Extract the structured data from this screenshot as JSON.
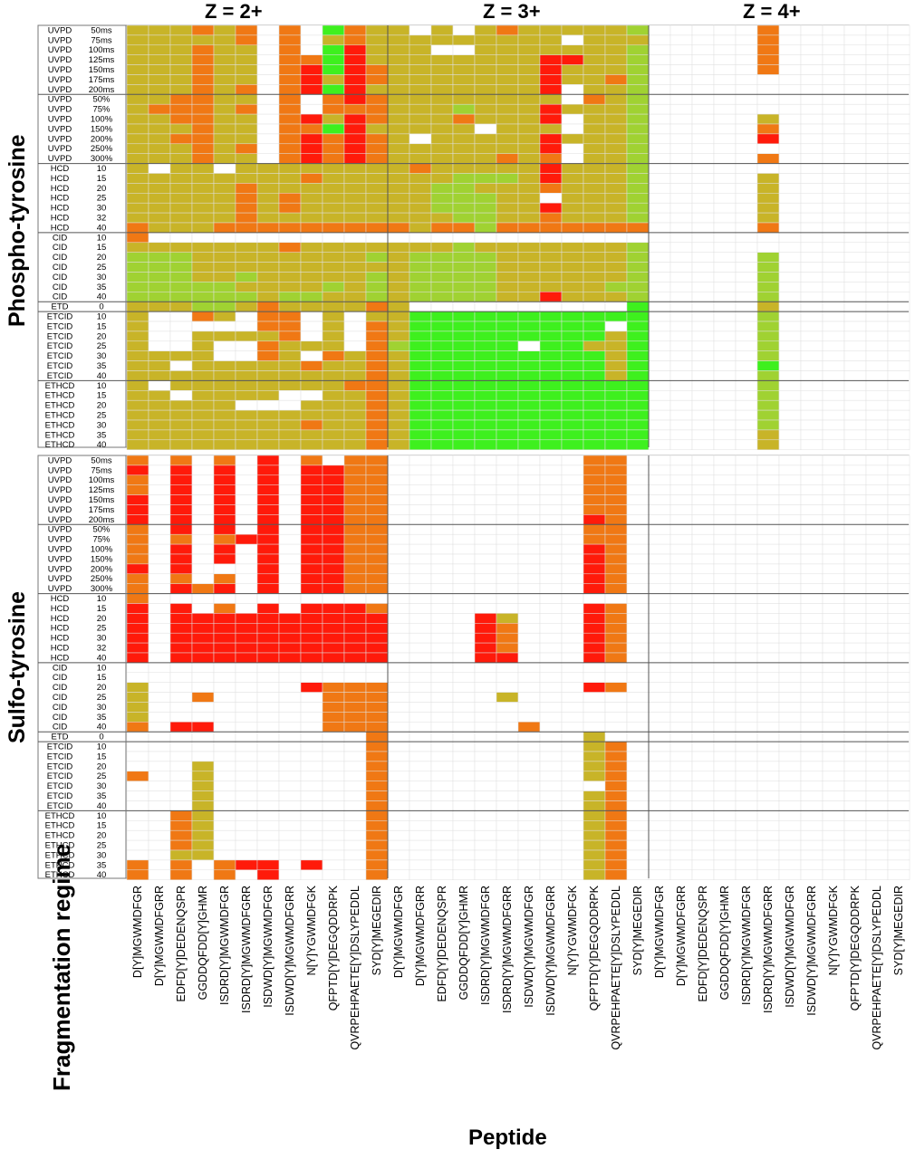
{
  "chart_data": {
    "type": "heatmap",
    "charge_states": [
      "Z = 2+",
      "Z = 3+",
      "Z = 4+"
    ],
    "peptides": [
      "D[Y]MGWMDFGR",
      "D[Y]MGWMDFGRR",
      "EDFD[Y]DEDENQSPR",
      "GGDDQFDD[Y]GHMR",
      "ISDRD[Y]MGWMDFGR",
      "ISDRD[Y]MGWMDFGRR",
      "ISDWD[Y]MGWMDFGR",
      "ISDWD[Y]MGWMDFGRR",
      "N[Y]YGWMDFGK",
      "QFPTD[Y]DEGQDDRPK",
      "QVRPEHPAETE[Y]DSLYPEDDL",
      "SYD[Y]MEGEDIR"
    ],
    "panels": [
      "Phospho-tyrosine",
      "Sulfo-tyrosine"
    ],
    "groups": [
      {
        "method": "UVPD",
        "levels": [
          "50ms",
          "75ms",
          "100ms",
          "125ms",
          "150ms",
          "175ms",
          "200ms"
        ]
      },
      {
        "method": "UVPD",
        "levels": [
          "50%",
          "75%",
          "100%",
          "150%",
          "200%",
          "250%",
          "300%"
        ]
      },
      {
        "method": "HCD",
        "levels": [
          "10",
          "15",
          "20",
          "25",
          "30",
          "32",
          "40"
        ]
      },
      {
        "method": "CID",
        "levels": [
          "10",
          "15",
          "20",
          "25",
          "30",
          "35",
          "40"
        ]
      },
      {
        "method": "ETD",
        "levels": [
          "0"
        ]
      },
      {
        "method": "ETCID",
        "levels": [
          "10",
          "15",
          "20",
          "25",
          "30",
          "35",
          "40"
        ]
      },
      {
        "method": "ETHCD",
        "levels": [
          "10",
          "15",
          "20",
          "25",
          "30",
          "35",
          "40"
        ]
      }
    ],
    "xlabel": "Peptide",
    "ylabel": "Fragmentation regime",
    "color_scale": [
      "#ff1a0a",
      "#f07814",
      "#c8b428",
      "#a0d232",
      "#3ef01e"
    ],
    "color_key": {
      "0": "#ffffff",
      "1": "#ff1a0a",
      "2": "#f07814",
      "3": "#c8b428",
      "4": "#a0d232",
      "5": "#3ef01e"
    },
    "grid": "on",
    "matrices": {
      "phospho": {
        "Z = 2+": [
          "333232020523",
          "333332020323",
          "333233020513",
          "333233022513",
          "333233021512",
          "333233021312",
          "333232021513",
          "332233020212",
          "322232020222",
          "332233021312",
          "333233022513",
          "332233021212",
          "333232021212",
          "333233021212",
          "303303333333",
          "333333332333",
          "333332333333",
          "333332323333",
          "333332323333",
          "333332333333",
          "233322222222",
          "200000000000",
          "333333323333",
          "444333333334",
          "444333333333",
          "444334333334",
          "444443333434",
          "444444344334",
          "333443233332",
          "300230220303",
          "300000220302",
          "300333320302",
          "300300233302",
          "333300230232",
          "330333332332",
          "333333333332",
          "303333333322",
          "330333300332",
          "333330003332",
          "333333333332",
          "333333332332",
          "333333333332",
          "333333333332"
        ],
        "Z = 3+": [
          "303032333334",
          "333333330333",
          "330033333334",
          "333333311334",
          "333333313334",
          "333333313324",
          "333333310334",
          "333333330234",
          "333433313334",
          "333233310334",
          "333303330334",
          "303333313334",
          "333333310334",
          "333332320334",
          "323333313334",
          "333444313334",
          "334433323334",
          "334443303334",
          "334443313334",
          "333443323334",
          "232242222222",
          "000000000000",
          "333433333334",
          "344443333334",
          "344443333334",
          "344443333334",
          "344443333344",
          "344443313334",
          "300000000005",
          "355555555555",
          "355555555505",
          "355555555535",
          "455555055335",
          "355555555535",
          "355555555535",
          "355555555535",
          "355555555555",
          "355555555555",
          "355555555555",
          "355555555555",
          "355555555555",
          "355555555555",
          "355555555555"
        ],
        "Z = 4+": [
          "000002000000",
          "000002000000",
          "000002000000",
          "000002000000",
          "000002000000",
          "000000000000",
          "000000000000",
          "000000000000",
          "000000000000",
          "000003000000",
          "000002000000",
          "000001000000",
          "000000000000",
          "000002000000",
          "000000000000",
          "000003000000",
          "000003000000",
          "000003000000",
          "000003000000",
          "000003000000",
          "000002000000",
          "000000000000",
          "000000000000",
          "000004000000",
          "000004000000",
          "000004000000",
          "000004000000",
          "000004000000",
          "000003000000",
          "000004000000",
          "000004000000",
          "000004000000",
          "000004000000",
          "000004000000",
          "000005000000",
          "000004000000",
          "000004000000",
          "000004000000",
          "000004000000",
          "000004000000",
          "000004000000",
          "000003000000",
          "000003000000"
        ]
      },
      "sulfo": {
        "Z = 2+": [
          "202020102022",
          "101010101122",
          "201010101122",
          "201010101122",
          "101010101122",
          "101010101122",
          "101010101122",
          "201010101122",
          "202021101122",
          "201010101122",
          "201010101122",
          "101000101122",
          "202020101122",
          "201210101122",
          "200000000000",
          "101020101112",
          "101111111111",
          "101111111111",
          "101111111111",
          "101111111111",
          "101111111111",
          "000000000000",
          "000000000000",
          "300000001222",
          "300200000222",
          "300000000222",
          "300000000222",
          "201100000222",
          "000000000002",
          "000000000002",
          "000000000002",
          "000300000002",
          "200300000002",
          "000300000002",
          "000300000002",
          "000300000002",
          "002300000002",
          "002300000002",
          "002300000002",
          "002300000002",
          "003300000002",
          "202021101002",
          "202020100002"
        ],
        "Z = 3+": [
          "000000000220",
          "000000000220",
          "000000000220",
          "000000000220",
          "000000000220",
          "000000000220",
          "000000000120",
          "000000000220",
          "000000000220",
          "000000000120",
          "000000000120",
          "000000000120",
          "000000000120",
          "000000000120",
          "000000000000",
          "000000000120",
          "000013000120",
          "000012000120",
          "000012000120",
          "000012000120",
          "000011000120",
          "000000000000",
          "000000000000",
          "000000000120",
          "000003000000",
          "000000000000",
          "000000000000",
          "000000200000",
          "000000000300",
          "000000000320",
          "000000000320",
          "000000000320",
          "000000000320",
          "000000000020",
          "000000000320",
          "000000000320",
          "000000000320",
          "000000000320",
          "000000000320",
          "000000000320",
          "000000000320",
          "000000000320",
          "000000000320"
        ],
        "Z = 4+": []
      }
    }
  }
}
